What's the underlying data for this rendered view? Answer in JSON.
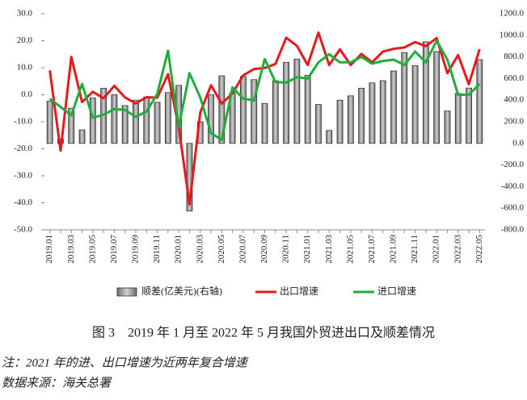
{
  "chart_data": {
    "type": "bar",
    "categories": [
      "2019.01",
      null,
      "2019.03",
      null,
      "2019.05",
      null,
      "2019.07",
      null,
      "2019.09",
      null,
      "2019.11",
      null,
      "2020.01",
      null,
      "2020.03",
      null,
      "2020.05",
      null,
      "2020.07",
      null,
      "2020.09",
      null,
      "2020.11",
      null,
      "2021.01",
      null,
      "2021.03",
      null,
      "2021.05",
      null,
      "2021.07",
      null,
      "2021.09",
      null,
      "2021.11",
      null,
      "2022.01",
      null,
      "2022.03",
      null,
      "2022.05"
    ],
    "series": [
      {
        "name": "顺差(亿美元)(右轴)",
        "type": "bar",
        "axis": "y2",
        "color": "#9e9e9e",
        "values": [
          390,
          40,
          325,
          125,
          420,
          510,
          450,
          350,
          400,
          430,
          380,
          470,
          537,
          -625,
          200,
          450,
          625,
          465,
          620,
          590,
          370,
          580,
          750,
          780,
          630,
          360,
          120,
          400,
          440,
          510,
          560,
          580,
          670,
          840,
          720,
          940,
          850,
          300,
          462,
          512,
          775
        ]
      },
      {
        "name": "出口增速",
        "type": "line",
        "color": "#e41a1c",
        "values": [
          9,
          -20.7,
          14,
          -2.7,
          1.1,
          -1.3,
          3.3,
          -1,
          -3.2,
          -0.9,
          -1.1,
          7.6,
          -12,
          -40.6,
          -6.6,
          3.5,
          -3.3,
          0.5,
          7.2,
          9.5,
          9.9,
          11.4,
          21.1,
          18.1,
          11,
          23,
          11,
          16.8,
          11,
          15.1,
          12,
          16,
          17,
          17.5,
          19.5,
          18,
          21,
          8,
          14.7,
          3.9,
          16.9
        ]
      },
      {
        "name": "进口增速",
        "type": "line",
        "color": "#1fae3c",
        "values": [
          -1.5,
          -4.5,
          -7.6,
          4,
          -8.5,
          -7.4,
          -5.3,
          -5.6,
          -8.2,
          -6.2,
          0.3,
          16.3,
          -12,
          8,
          -1,
          -14.2,
          -16.7,
          2.7,
          -1.4,
          -2.1,
          13.2,
          4.7,
          4.5,
          6.5,
          6,
          12,
          15,
          12,
          12,
          14,
          11.5,
          12.5,
          13,
          11,
          16,
          12,
          20,
          13,
          0,
          0,
          4
        ]
      }
    ],
    "ylim": [
      -50,
      30
    ],
    "yticks": [
      {
        "value": -50,
        "label": "-50.0"
      },
      {
        "value": -40,
        "label": "-40.0"
      },
      {
        "value": -30,
        "label": "-30.0"
      },
      {
        "value": -20,
        "label": "-20.0"
      },
      {
        "value": -10,
        "label": "-10.0"
      },
      {
        "value": 0,
        "label": "0.0"
      },
      {
        "value": 10,
        "label": "10.0"
      },
      {
        "value": 20,
        "label": "20.0"
      },
      {
        "value": 30,
        "label": "30.0"
      }
    ],
    "y2lim": [
      -800,
      1200
    ],
    "y2ticks": [
      {
        "value": -800,
        "label": "-800.0"
      },
      {
        "value": -600,
        "label": "-600.0"
      },
      {
        "value": -400,
        "label": "-400.0"
      },
      {
        "value": -200,
        "label": "-200.0"
      },
      {
        "value": 0,
        "label": "0.0"
      },
      {
        "value": 200,
        "label": "200.0"
      },
      {
        "value": 400,
        "label": "400.0"
      },
      {
        "value": 600,
        "label": "600.0"
      },
      {
        "value": 800,
        "label": "800.0"
      },
      {
        "value": 1000,
        "label": "1000.0"
      },
      {
        "value": 1200,
        "label": "1200.0"
      }
    ],
    "caption": "图 3　2019 年 1 月至 2022 年 5 月我国外贸进出口及顺差情况",
    "notes": [
      "注：2021 年的进、出口增速为近两年复合增速",
      "数据来源：海关总署"
    ]
  }
}
